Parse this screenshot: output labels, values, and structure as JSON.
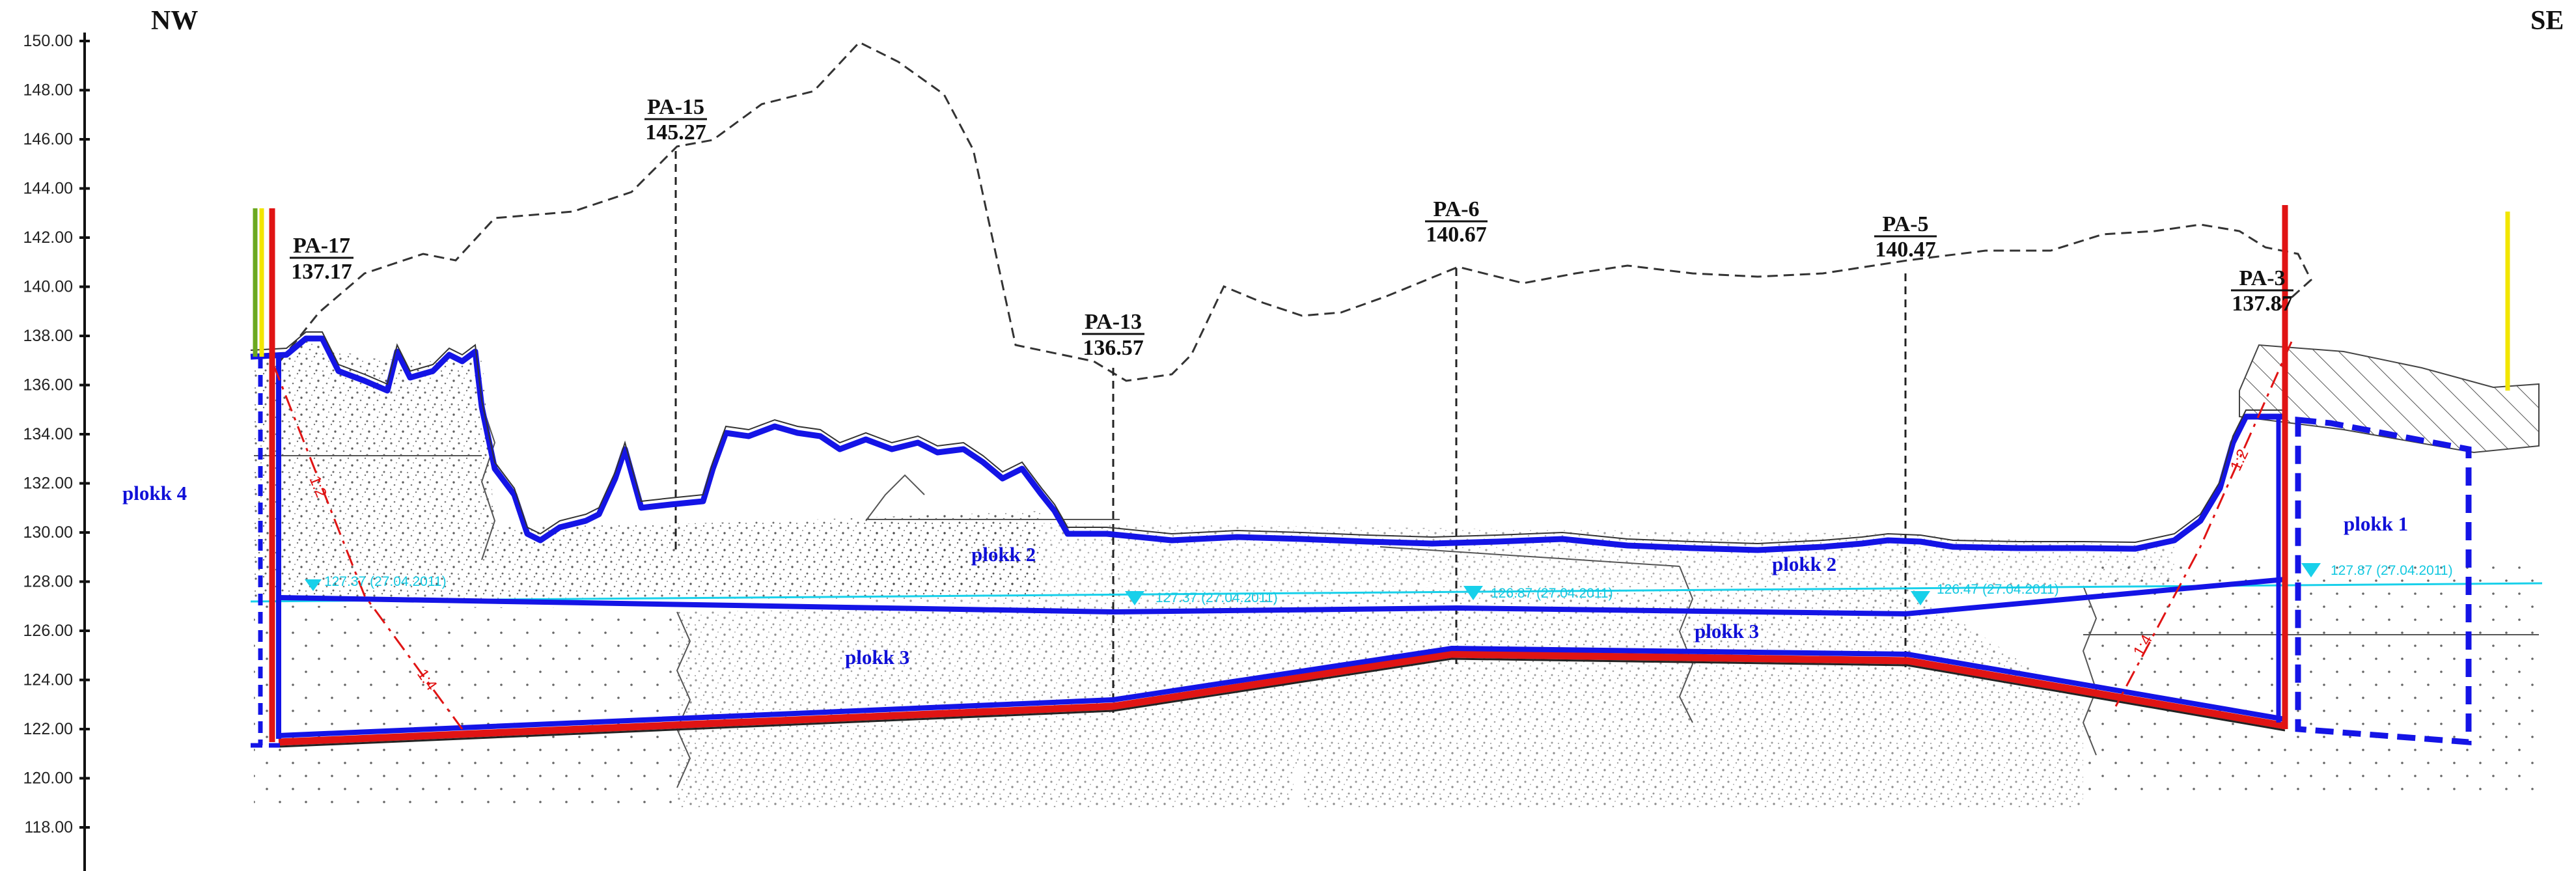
{
  "orientation": {
    "left": "NW",
    "right": "SE"
  },
  "axis": {
    "ticks": [
      "150.00",
      "148.00",
      "146.00",
      "144.00",
      "142.00",
      "140.00",
      "138.00",
      "136.00",
      "134.00",
      "132.00",
      "130.00",
      "128.00",
      "126.00",
      "124.00",
      "122.00",
      "120.00",
      "118.00"
    ]
  },
  "boreholes": [
    {
      "name": "PA-17",
      "elevation": "137.17"
    },
    {
      "name": "PA-15",
      "elevation": "145.27"
    },
    {
      "name": "PA-13",
      "elevation": "136.57"
    },
    {
      "name": "PA-6",
      "elevation": "140.67"
    },
    {
      "name": "PA-5",
      "elevation": "140.47"
    },
    {
      "name": "PA-3",
      "elevation": "137.87"
    }
  ],
  "blocks": [
    "plokk 4",
    "plokk 2",
    "plokk 3",
    "plokk 2",
    "plokk 3",
    "plokk 1"
  ],
  "water_levels": [
    "127.37 (27.04.2011)",
    "127.37 (27.04.2011)",
    "126.87 (27.04.2011)",
    "126.47 (27.04.2011)",
    "127.87 (27.04.2011)"
  ],
  "slopes": [
    "1:2",
    "1:4",
    "1:2",
    "1:4"
  ],
  "colors": {
    "excavation": "#1414e6",
    "liner": "#e01414",
    "water": "#18d0ea",
    "terrain": "#333333",
    "safety_yellow": "#f2e600",
    "safety_green": "#6aa820"
  }
}
